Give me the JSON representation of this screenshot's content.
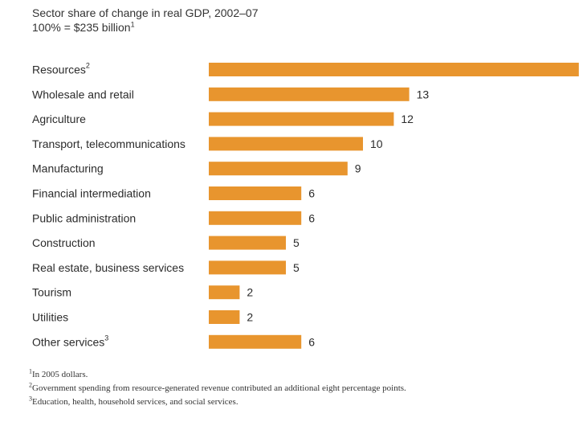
{
  "header": {
    "title": "Sector share of change in real GDP, 2002–07",
    "subtitle": "100% = $235 billion",
    "subtitle_note": "1"
  },
  "chart_data": {
    "type": "bar",
    "orientation": "horizontal",
    "categories": [
      "Resources",
      "Wholesale and retail",
      "Agriculture",
      "Transport, telecommunications",
      "Manufacturing",
      "Financial intermediation",
      "Public administration",
      "Construction",
      "Real estate, business services",
      "Tourism",
      "Utilities",
      "Other services"
    ],
    "category_notes": [
      "2",
      "",
      "",
      "",
      "",
      "",
      "",
      "",
      "",
      "",
      "",
      "3"
    ],
    "values": [
      24,
      13,
      12,
      10,
      9,
      6,
      6,
      5,
      5,
      2,
      2,
      6
    ],
    "value_labels": [
      "",
      "13",
      "12",
      "10",
      "9",
      "6",
      "6",
      "5",
      "5",
      "2",
      "2",
      "6"
    ],
    "bar_color": "#e8952e",
    "unit": "%"
  },
  "footnotes": [
    {
      "mark": "1",
      "text": "In 2005 dollars."
    },
    {
      "mark": "2",
      "text": "Government spending from resource-generated revenue contributed an additional eight percentage points."
    },
    {
      "mark": "3",
      "text": "Education, health, household services, and social services."
    }
  ]
}
